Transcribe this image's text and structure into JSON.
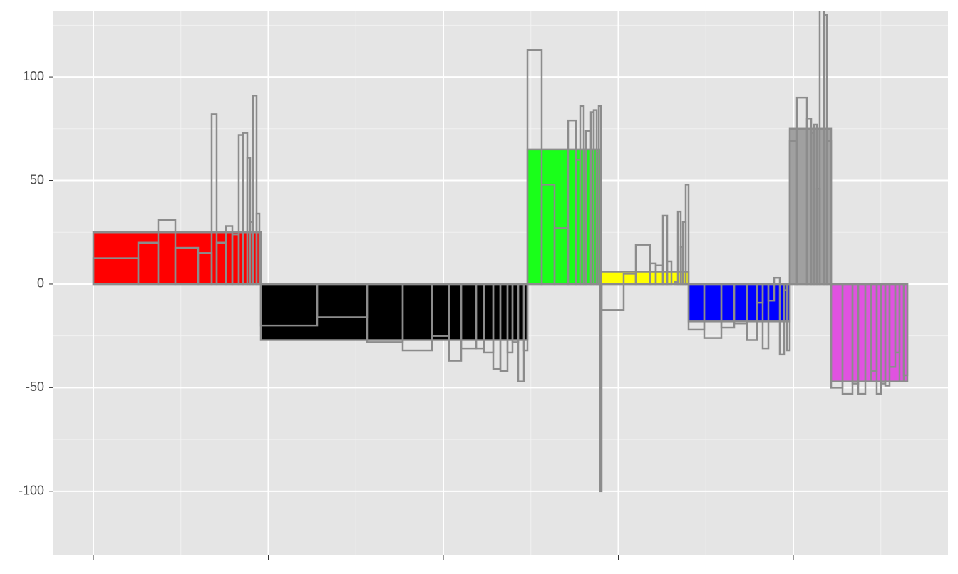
{
  "chart_data": {
    "type": "bar",
    "xlim": [
      -56,
      1199
    ],
    "xticks": [
      0,
      245.5,
      491,
      736.5,
      982
    ],
    "ylim": [
      -131,
      132
    ],
    "yticks": [
      -100,
      -50,
      0,
      50,
      100
    ],
    "grid": true,
    "bars": {
      "xmin": [
        0,
        235,
        609,
        712,
        835,
        977,
        1035
      ],
      "xmax": [
        235,
        609,
        712,
        835,
        977,
        1035,
        1142
      ],
      "values": [
        25,
        -27,
        65,
        6,
        -18,
        75,
        -47
      ],
      "colors": [
        "#ff0000",
        "#000000",
        "#1aff1a",
        "#ffff00",
        "#0000ff",
        "#a0a0a0",
        "#e052e0"
      ]
    },
    "sub_bars": {
      "color": "#8c8c8c",
      "xmin": [
        0,
        63,
        91,
        115,
        147,
        166,
        173,
        186,
        195,
        204,
        210,
        216,
        220,
        224,
        229,
        235,
        314,
        384,
        434,
        475,
        499,
        516,
        537,
        548,
        561,
        571,
        581,
        588,
        596,
        604,
        609,
        629,
        647,
        666,
        677,
        683,
        688,
        691,
        698,
        702,
        706,
        709,
        711,
        713,
        744,
        761,
        781,
        789,
        799,
        805,
        811,
        816,
        820,
        824,
        827,
        831,
        835,
        857,
        881,
        899,
        917,
        931,
        939,
        947,
        955,
        963,
        969,
        973,
        977,
        987,
        1001,
        1007,
        1011,
        1015,
        1019,
        1025,
        1029,
        1035,
        1051,
        1065,
        1073,
        1083,
        1091,
        1099,
        1105,
        1111,
        1117,
        1125,
        1131,
        1137
      ],
      "xmax": [
        63,
        91,
        115,
        147,
        166,
        173,
        186,
        195,
        204,
        210,
        216,
        220,
        224,
        229,
        233,
        314,
        384,
        434,
        475,
        499,
        516,
        537,
        548,
        561,
        571,
        581,
        588,
        596,
        604,
        609,
        629,
        647,
        666,
        677,
        683,
        688,
        691,
        698,
        702,
        706,
        709,
        712,
        713,
        744,
        761,
        781,
        789,
        799,
        805,
        811,
        816,
        820,
        824,
        827,
        831,
        835,
        857,
        881,
        899,
        917,
        931,
        939,
        947,
        955,
        963,
        969,
        973,
        977,
        987,
        1001,
        1007,
        1011,
        1015,
        1019,
        1025,
        1029,
        1035,
        1051,
        1065,
        1073,
        1083,
        1091,
        1099,
        1105,
        1111,
        1117,
        1125,
        1131,
        1137,
        1142
      ],
      "values": [
        12.5,
        20,
        31,
        17.5,
        15,
        82,
        20,
        28,
        24,
        72,
        73,
        61,
        30,
        91,
        34,
        -20,
        -16,
        -28,
        -32,
        -25,
        -37,
        -31,
        -31,
        -33,
        -41,
        -42,
        -33,
        -28,
        -47,
        -32,
        113,
        48,
        27,
        79,
        60,
        86,
        65,
        74,
        83,
        84,
        64,
        86,
        -100,
        -12.5,
        5,
        19,
        10,
        9,
        33,
        11,
        0,
        1,
        35,
        18,
        30,
        48,
        -22,
        -26,
        -21,
        -19,
        -27,
        -9,
        -31,
        -8,
        3,
        -34,
        -3,
        -32,
        69,
        90,
        80,
        73,
        77,
        46,
        140,
        130,
        69,
        -50,
        -53,
        -48,
        -53,
        -47,
        -42,
        -53,
        -48,
        -49,
        -40,
        -33,
        -47,
        -44
      ]
    }
  }
}
